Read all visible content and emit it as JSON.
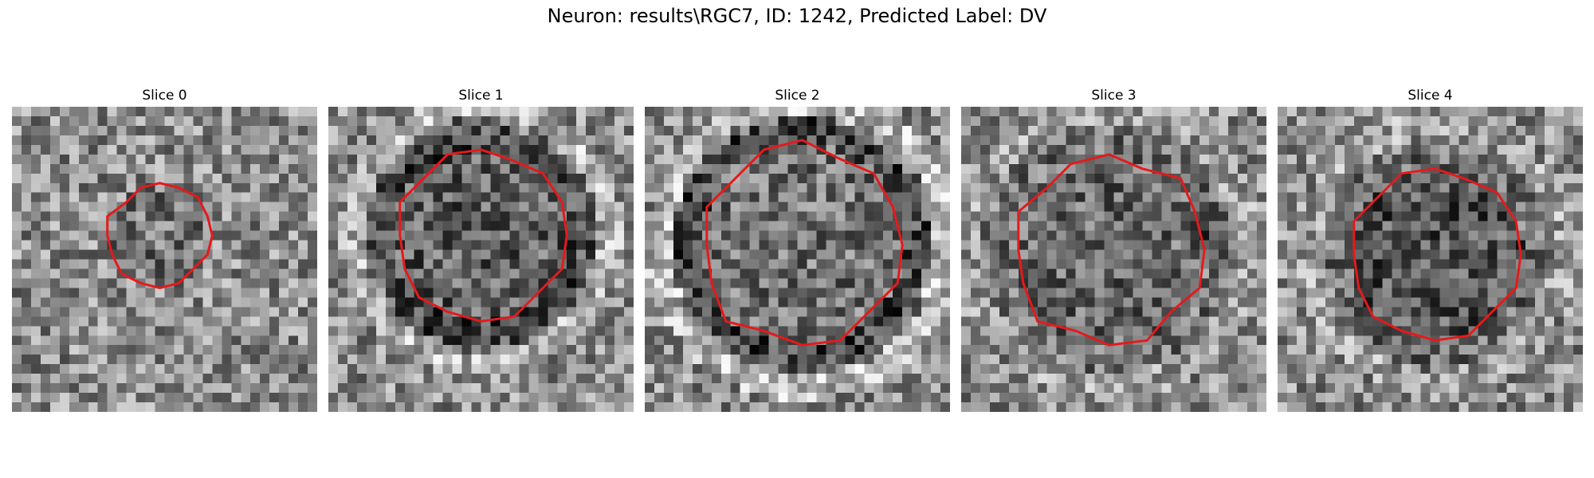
{
  "figure": {
    "title": "Neuron: results\\RGC7, ID: 1242, Predicted Label: DV",
    "contour_color": "#e41a1c"
  },
  "slices": [
    {
      "title": "Slice 0"
    },
    {
      "title": "Slice 1"
    },
    {
      "title": "Slice 2"
    },
    {
      "title": "Slice 3"
    },
    {
      "title": "Slice 4"
    }
  ]
}
